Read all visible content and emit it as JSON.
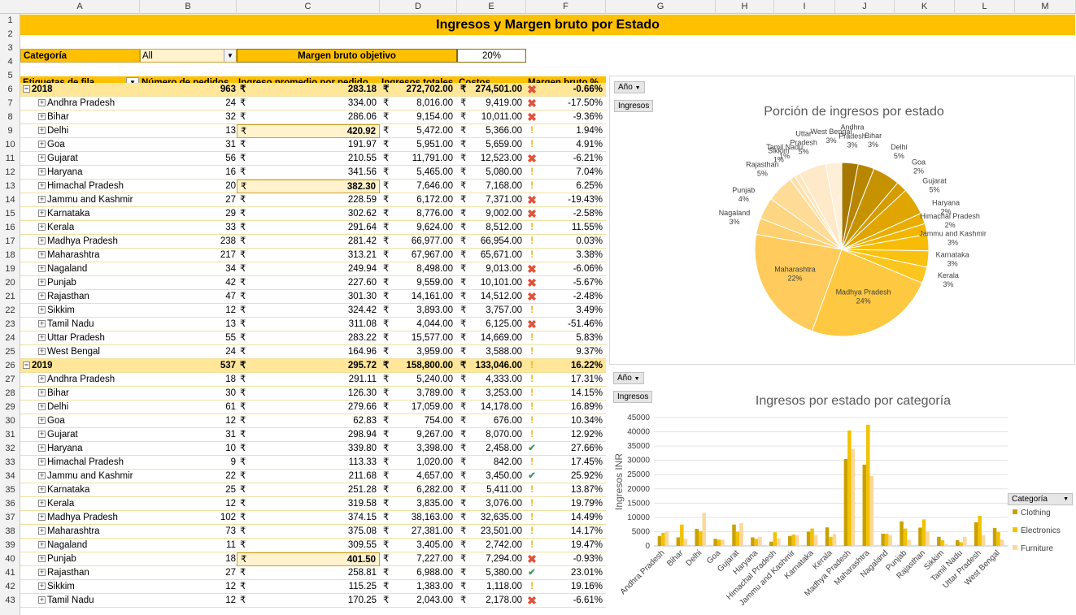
{
  "columns": [
    "A",
    "B",
    "C",
    "D",
    "E",
    "F",
    "G",
    "H",
    "I",
    "J",
    "K",
    "L",
    "M"
  ],
  "title": "Ingresos y Margen bruto por Estado",
  "filter": {
    "label": "Categoría",
    "value": "All",
    "target_label": "Margen bruto objetivo",
    "target_value": "20%"
  },
  "headers": [
    "Etiquetas de fila",
    "Número de pedidos",
    "Ingreso promedio por pedido",
    "Ingresos totales",
    "Costos",
    "Margen bruto %"
  ],
  "currency": "₹",
  "rows": [
    {
      "n": 6,
      "label": "2018",
      "orders": "963",
      "avg": "283.18",
      "rev": "272,702.00",
      "cost": "274,501.00",
      "icon": "x",
      "margin": "-0.66%",
      "year": true
    },
    {
      "n": 7,
      "label": "Andhra Pradesh",
      "orders": "24",
      "avg": "334.00",
      "rev": "8,016.00",
      "cost": "9,419.00",
      "icon": "x",
      "margin": "-17.50%"
    },
    {
      "n": 8,
      "label": "Bihar",
      "orders": "32",
      "avg": "286.06",
      "rev": "9,154.00",
      "cost": "10,011.00",
      "icon": "x",
      "margin": "-9.36%"
    },
    {
      "n": 9,
      "label": "Delhi",
      "orders": "13",
      "avg": "420.92",
      "rev": "5,472.00",
      "cost": "5,366.00",
      "icon": "!",
      "margin": "1.94%",
      "hl": true
    },
    {
      "n": 10,
      "label": "Goa",
      "orders": "31",
      "avg": "191.97",
      "rev": "5,951.00",
      "cost": "5,659.00",
      "icon": "!",
      "margin": "4.91%"
    },
    {
      "n": 11,
      "label": "Gujarat",
      "orders": "56",
      "avg": "210.55",
      "rev": "11,791.00",
      "cost": "12,523.00",
      "icon": "x",
      "margin": "-6.21%"
    },
    {
      "n": 12,
      "label": "Haryana",
      "orders": "16",
      "avg": "341.56",
      "rev": "5,465.00",
      "cost": "5,080.00",
      "icon": "!",
      "margin": "7.04%"
    },
    {
      "n": 13,
      "label": "Himachal Pradesh",
      "orders": "20",
      "avg": "382.30",
      "rev": "7,646.00",
      "cost": "7,168.00",
      "icon": "!",
      "margin": "6.25%",
      "hl": true
    },
    {
      "n": 14,
      "label": "Jammu and Kashmir",
      "orders": "27",
      "avg": "228.59",
      "rev": "6,172.00",
      "cost": "7,371.00",
      "icon": "x",
      "margin": "-19.43%"
    },
    {
      "n": 15,
      "label": "Karnataka",
      "orders": "29",
      "avg": "302.62",
      "rev": "8,776.00",
      "cost": "9,002.00",
      "icon": "x",
      "margin": "-2.58%"
    },
    {
      "n": 16,
      "label": "Kerala",
      "orders": "33",
      "avg": "291.64",
      "rev": "9,624.00",
      "cost": "8,512.00",
      "icon": "!",
      "margin": "11.55%"
    },
    {
      "n": 17,
      "label": "Madhya Pradesh",
      "orders": "238",
      "avg": "281.42",
      "rev": "66,977.00",
      "cost": "66,954.00",
      "icon": "!",
      "margin": "0.03%"
    },
    {
      "n": 18,
      "label": "Maharashtra",
      "orders": "217",
      "avg": "313.21",
      "rev": "67,967.00",
      "cost": "65,671.00",
      "icon": "!",
      "margin": "3.38%"
    },
    {
      "n": 19,
      "label": "Nagaland",
      "orders": "34",
      "avg": "249.94",
      "rev": "8,498.00",
      "cost": "9,013.00",
      "icon": "x",
      "margin": "-6.06%"
    },
    {
      "n": 20,
      "label": "Punjab",
      "orders": "42",
      "avg": "227.60",
      "rev": "9,559.00",
      "cost": "10,101.00",
      "icon": "x",
      "margin": "-5.67%"
    },
    {
      "n": 21,
      "label": "Rajasthan",
      "orders": "47",
      "avg": "301.30",
      "rev": "14,161.00",
      "cost": "14,512.00",
      "icon": "x",
      "margin": "-2.48%"
    },
    {
      "n": 22,
      "label": "Sikkim",
      "orders": "12",
      "avg": "324.42",
      "rev": "3,893.00",
      "cost": "3,757.00",
      "icon": "!",
      "margin": "3.49%"
    },
    {
      "n": 23,
      "label": "Tamil Nadu",
      "orders": "13",
      "avg": "311.08",
      "rev": "4,044.00",
      "cost": "6,125.00",
      "icon": "x",
      "margin": "-51.46%"
    },
    {
      "n": 24,
      "label": "Uttar Pradesh",
      "orders": "55",
      "avg": "283.22",
      "rev": "15,577.00",
      "cost": "14,669.00",
      "icon": "!",
      "margin": "5.83%"
    },
    {
      "n": 25,
      "label": "West Bengal",
      "orders": "24",
      "avg": "164.96",
      "rev": "3,959.00",
      "cost": "3,588.00",
      "icon": "!",
      "margin": "9.37%"
    },
    {
      "n": 26,
      "label": "2019",
      "orders": "537",
      "avg": "295.72",
      "rev": "158,800.00",
      "cost": "133,046.00",
      "icon": "!",
      "margin": "16.22%",
      "year": true
    },
    {
      "n": 27,
      "label": "Andhra Pradesh",
      "orders": "18",
      "avg": "291.11",
      "rev": "5,240.00",
      "cost": "4,333.00",
      "icon": "!",
      "margin": "17.31%"
    },
    {
      "n": 28,
      "label": "Bihar",
      "orders": "30",
      "avg": "126.30",
      "rev": "3,789.00",
      "cost": "3,253.00",
      "icon": "!",
      "margin": "14.15%"
    },
    {
      "n": 29,
      "label": "Delhi",
      "orders": "61",
      "avg": "279.66",
      "rev": "17,059.00",
      "cost": "14,178.00",
      "icon": "!",
      "margin": "16.89%"
    },
    {
      "n": 30,
      "label": "Goa",
      "orders": "12",
      "avg": "62.83",
      "rev": "754.00",
      "cost": "676.00",
      "icon": "!",
      "margin": "10.34%"
    },
    {
      "n": 31,
      "label": "Gujarat",
      "orders": "31",
      "avg": "298.94",
      "rev": "9,267.00",
      "cost": "8,070.00",
      "icon": "!",
      "margin": "12.92%"
    },
    {
      "n": 32,
      "label": "Haryana",
      "orders": "10",
      "avg": "339.80",
      "rev": "3,398.00",
      "cost": "2,458.00",
      "icon": "ok",
      "margin": "27.66%"
    },
    {
      "n": 33,
      "label": "Himachal Pradesh",
      "orders": "9",
      "avg": "113.33",
      "rev": "1,020.00",
      "cost": "842.00",
      "icon": "!",
      "margin": "17.45%"
    },
    {
      "n": 34,
      "label": "Jammu and Kashmir",
      "orders": "22",
      "avg": "211.68",
      "rev": "4,657.00",
      "cost": "3,450.00",
      "icon": "ok",
      "margin": "25.92%"
    },
    {
      "n": 35,
      "label": "Karnataka",
      "orders": "25",
      "avg": "251.28",
      "rev": "6,282.00",
      "cost": "5,411.00",
      "icon": "!",
      "margin": "13.87%"
    },
    {
      "n": 36,
      "label": "Kerala",
      "orders": "12",
      "avg": "319.58",
      "rev": "3,835.00",
      "cost": "3,076.00",
      "icon": "!",
      "margin": "19.79%"
    },
    {
      "n": 37,
      "label": "Madhya Pradesh",
      "orders": "102",
      "avg": "374.15",
      "rev": "38,163.00",
      "cost": "32,635.00",
      "icon": "!",
      "margin": "14.49%"
    },
    {
      "n": 38,
      "label": "Maharashtra",
      "orders": "73",
      "avg": "375.08",
      "rev": "27,381.00",
      "cost": "23,501.00",
      "icon": "!",
      "margin": "14.17%"
    },
    {
      "n": 39,
      "label": "Nagaland",
      "orders": "11",
      "avg": "309.55",
      "rev": "3,405.00",
      "cost": "2,742.00",
      "icon": "!",
      "margin": "19.47%"
    },
    {
      "n": 40,
      "label": "Punjab",
      "orders": "18",
      "avg": "401.50",
      "rev": "7,227.00",
      "cost": "7,294.00",
      "icon": "x",
      "margin": "-0.93%",
      "hl": true
    },
    {
      "n": 41,
      "label": "Rajasthan",
      "orders": "27",
      "avg": "258.81",
      "rev": "6,988.00",
      "cost": "5,380.00",
      "icon": "ok",
      "margin": "23.01%"
    },
    {
      "n": 42,
      "label": "Sikkim",
      "orders": "12",
      "avg": "115.25",
      "rev": "1,383.00",
      "cost": "1,118.00",
      "icon": "!",
      "margin": "19.16%"
    },
    {
      "n": 43,
      "label": "Tamil Nadu",
      "orders": "12",
      "avg": "170.25",
      "rev": "2,043.00",
      "cost": "2,178.00",
      "icon": "x",
      "margin": "-6.61%"
    }
  ],
  "pie": {
    "slicer": "Año",
    "field_btn": "Ingresos",
    "title": "Porción de ingresos por estado"
  },
  "bar": {
    "slicer": "Año",
    "field_btn": "Ingresos",
    "title": "Ingresos por estado por categoría",
    "legend_title": "Categoría",
    "ylabel": "Ingresos INR"
  },
  "chart_data": [
    {
      "type": "pie",
      "title": "Porción de ingresos por estado",
      "categories": [
        "Andhra Pradesh",
        "Bihar",
        "Delhi",
        "Goa",
        "Gujarat",
        "Haryana",
        "Himachal Pradesh",
        "Jammu and Kashmir",
        "Karnataka",
        "Kerala",
        "Madhya Pradesh",
        "Maharashtra",
        "Nagaland",
        "Punjab",
        "Rajasthan",
        "Sikkim",
        "Tamil Nadu",
        "Uttar Pradesh",
        "West Bengal"
      ],
      "values": [
        3,
        3,
        5,
        2,
        5,
        2,
        2,
        3,
        3,
        3,
        24,
        22,
        3,
        4,
        5,
        1,
        1,
        5,
        3
      ],
      "labels": [
        "3%",
        "3%",
        "5%",
        "2%",
        "5%",
        "2%",
        "2%",
        "3%",
        "3%",
        "3%",
        "24%",
        "22%",
        "3%",
        "4%",
        "5%",
        "1%",
        "1%",
        "5%",
        "3%"
      ],
      "colors": [
        "#a67800",
        "#b88600",
        "#c79200",
        "#d49c00",
        "#e0a500",
        "#e9ad00",
        "#f2b600",
        "#f7bd06",
        "#fac210",
        "#fcc61f",
        "#fec840",
        "#fecb5c",
        "#fdd070",
        "#fdd683",
        "#fedc97",
        "#fee1aa",
        "#fee6bc",
        "#fee9c8",
        "#feefd8"
      ]
    },
    {
      "type": "bar",
      "title": "Ingresos por estado por categoría",
      "ylabel": "Ingresos INR",
      "ylim": [
        0,
        45000
      ],
      "yticks": [
        "0",
        "5000",
        "10000",
        "15000",
        "20000",
        "25000",
        "30000",
        "35000",
        "40000",
        "45000"
      ],
      "categories": [
        "Andhra Pradesh",
        "Bihar",
        "Delhi",
        "Goa",
        "Gujarat",
        "Haryana",
        "Himachal Pradesh",
        "Jammu and Kashmir",
        "Karnataka",
        "Kerala",
        "Madhya Pradesh",
        "Maharashtra",
        "Nagaland",
        "Punjab",
        "Rajasthan",
        "Sikkim",
        "Tamil Nadu",
        "Uttar Pradesh",
        "West Bengal"
      ],
      "series": [
        {
          "name": "Clothing",
          "color": "#c9a000",
          "values": [
            3500,
            3000,
            6000,
            2500,
            7500,
            3000,
            1500,
            3500,
            5000,
            6500,
            30500,
            28500,
            4300,
            8600,
            6400,
            3200,
            2000,
            8300,
            6300
          ]
        },
        {
          "name": "Electronics",
          "color": "#f2c200",
          "values": [
            4600,
            7500,
            5200,
            2200,
            5000,
            2500,
            4800,
            4000,
            6100,
            3200,
            40500,
            42500,
            4300,
            6100,
            9300,
            2000,
            1300,
            10500,
            4900
          ]
        },
        {
          "name": "Furniture",
          "color": "#fcd79c",
          "values": [
            5200,
            2500,
            11600,
            2200,
            8000,
            3200,
            2700,
            3800,
            3800,
            4200,
            34000,
            24500,
            3800,
            2200,
            5100,
            700,
            3200,
            3800,
            2200
          ]
        }
      ]
    }
  ]
}
